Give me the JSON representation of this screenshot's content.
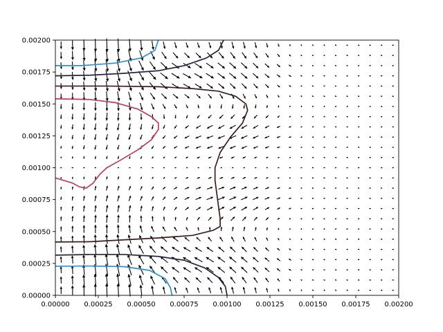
{
  "chart_data": {
    "type": "quiver",
    "title": "",
    "xlabel": "",
    "ylabel": "",
    "xlim": [
      0,
      0.002
    ],
    "ylim": [
      0,
      0.002
    ],
    "grid": false,
    "legend": "none",
    "x_ticks": [
      "0.00000",
      "0.00025",
      "0.00050",
      "0.00075",
      "0.00100",
      "0.00125",
      "0.00150",
      "0.00175",
      "0.00200"
    ],
    "y_ticks": [
      "0.00000",
      "0.00025",
      "0.00050",
      "0.00075",
      "0.00100",
      "0.00125",
      "0.00150",
      "0.00175",
      "0.00200"
    ],
    "quiver": {
      "x_range": [
        0,
        0.002
      ],
      "y_range": [
        0,
        0.002
      ],
      "nx": 30,
      "ny": 25,
      "color": "#000000"
    },
    "contours": [
      {
        "color": "#2b8fd6",
        "points": [
          [
            0,
            0.0018
          ],
          [
            0.00015,
            0.0018
          ],
          [
            0.00035,
            0.00182
          ],
          [
            0.0005,
            0.00186
          ],
          [
            0.00058,
            0.00192
          ],
          [
            0.0006,
            0.002
          ]
        ]
      },
      {
        "color": "#2b8fd6",
        "points": [
          [
            0,
            0.000228
          ],
          [
            0.0002,
            0.00023
          ],
          [
            0.0004,
            0.000225
          ],
          [
            0.00055,
            0.000195
          ],
          [
            0.00064,
            0.00013
          ],
          [
            0.00067,
            6e-05
          ],
          [
            0.00068,
            0
          ]
        ]
      },
      {
        "color": "#26233f",
        "points": [
          [
            0,
            0.00172
          ],
          [
            0.0002,
            0.001725
          ],
          [
            0.0004,
            0.00174
          ],
          [
            0.0006,
            0.00176
          ],
          [
            0.00075,
            0.0018
          ],
          [
            0.00088,
            0.00186
          ],
          [
            0.00095,
            0.00192
          ],
          [
            0.00098,
            0.002
          ]
        ]
      },
      {
        "color": "#26233f",
        "points": [
          [
            0,
            0.000315
          ],
          [
            0.0002,
            0.00032
          ],
          [
            0.0004,
            0.00032
          ],
          [
            0.0006,
            0.000305
          ],
          [
            0.00075,
            0.000275
          ],
          [
            0.00087,
            0.000215
          ],
          [
            0.00095,
            0.00014
          ],
          [
            0.00099,
            7e-05
          ],
          [
            0.001,
            0
          ]
        ]
      },
      {
        "color": "#3a1d1d",
        "points": [
          [
            0,
            0.00164
          ],
          [
            0.0003,
            0.00164
          ],
          [
            0.0006,
            0.001635
          ],
          [
            0.0008,
            0.00162
          ],
          [
            0.00095,
            0.0016
          ],
          [
            0.00105,
            0.00156
          ],
          [
            0.00111,
            0.0015
          ],
          [
            0.00112,
            0.00145
          ],
          [
            0.00109,
            0.00135
          ],
          [
            0.00102,
            0.00124
          ],
          [
            0.00096,
            0.00112
          ],
          [
            0.00093,
            0.001
          ],
          [
            0.00093,
            0.0009
          ],
          [
            0.00094,
            0.0008
          ],
          [
            0.00095,
            0.0007
          ],
          [
            0.00096,
            0.0006
          ],
          [
            0.00096,
            0.00054
          ],
          [
            0.00092,
            0.00051
          ],
          [
            0.0008,
            0.00047
          ],
          [
            0.0006,
            0.00045
          ],
          [
            0.0004,
            0.000435
          ],
          [
            0.0002,
            0.00042
          ],
          [
            0,
            0.000418
          ]
        ]
      },
      {
        "color": "#c03a5e",
        "points": [
          [
            0,
            0.00154
          ],
          [
            0.0002,
            0.001535
          ],
          [
            0.00035,
            0.00151
          ],
          [
            0.00048,
            0.00146
          ],
          [
            0.00056,
            0.0014
          ],
          [
            0.0006,
            0.00135
          ],
          [
            0.0006,
            0.0013
          ],
          [
            0.00056,
            0.00122
          ],
          [
            0.00048,
            0.00114
          ],
          [
            0.00038,
            0.00106
          ],
          [
            0.0003,
            0.001
          ],
          [
            0.00026,
            0.00095
          ],
          [
            0.00022,
            0.00088
          ],
          [
            0.00018,
            0.00084
          ],
          [
            0.00014,
            0.00085
          ],
          [
            0.0001,
            0.00088
          ],
          [
            5e-05,
            0.0009
          ],
          [
            0,
            0.00092
          ]
        ]
      }
    ]
  }
}
